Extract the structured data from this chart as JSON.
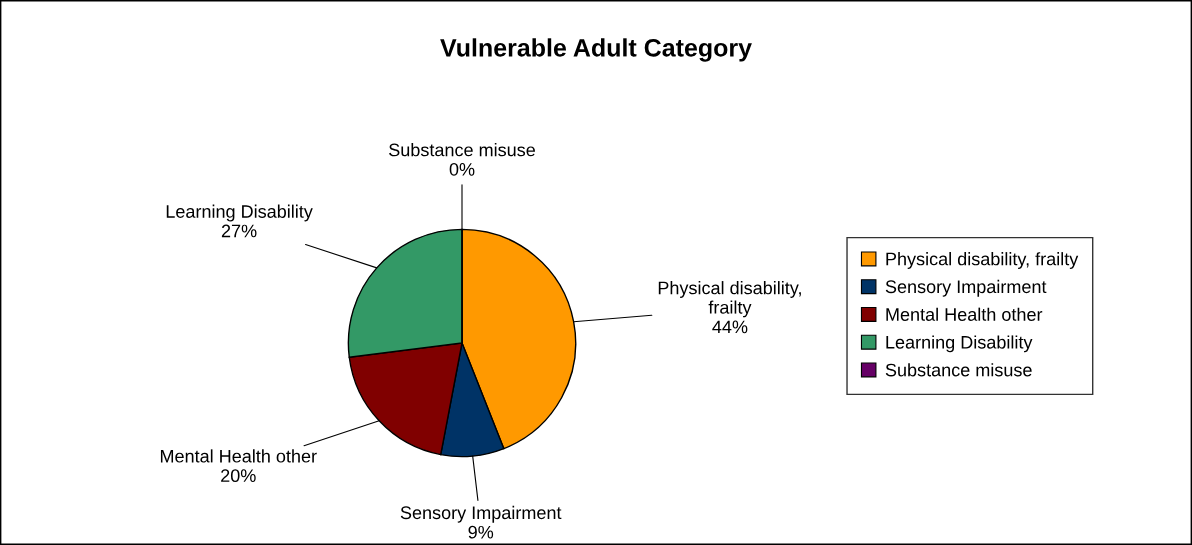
{
  "chart_data": {
    "type": "pie",
    "title": "Vulnerable Adult Category",
    "categories": [
      "Physical disability, frailty",
      "Sensory Impairment",
      "Mental Health other",
      "Learning Disability",
      "Substance misuse"
    ],
    "values": [
      44,
      9,
      20,
      27,
      0
    ],
    "colors": [
      "#ff9900",
      "#003366",
      "#800000",
      "#339966",
      "#660066"
    ],
    "value_labels": [
      "Physical disability,\nfrailty\n44%",
      "Sensory Impairment\n9%",
      "Mental Health other\n20%",
      "Learning Disability\n27%",
      "Substance misuse\n0%"
    ],
    "legend": "right"
  }
}
